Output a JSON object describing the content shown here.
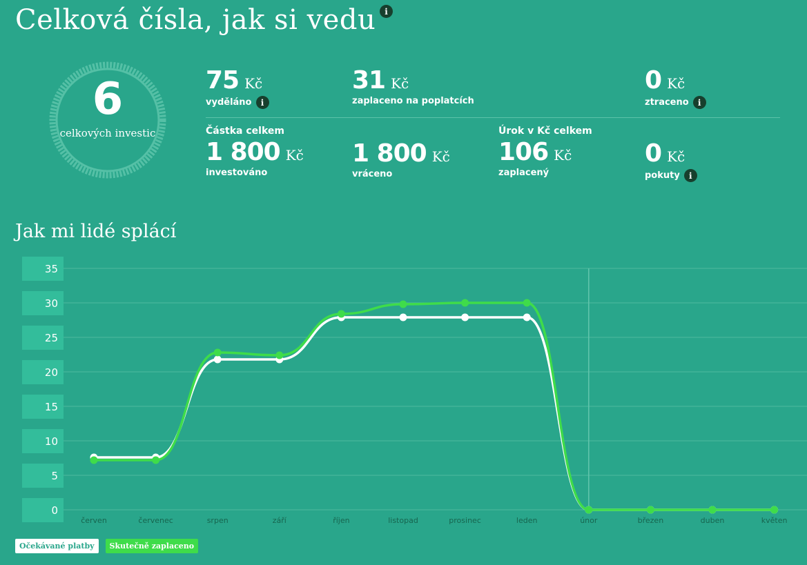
{
  "header": {
    "title": "Celková čísla, jak si vedu",
    "info_icon": "info-icon"
  },
  "summary": {
    "total_investments": {
      "value": "6",
      "label": "celkových investic"
    },
    "earned": {
      "value": "75",
      "unit": "Kč",
      "label": "vyděláno"
    },
    "fees": {
      "value": "31",
      "unit": "Kč",
      "label": "zaplaceno na poplatcích"
    },
    "lost": {
      "value": "0",
      "unit": "Kč",
      "label": "ztraceno"
    },
    "amount_heading": "Částka celkem",
    "invested": {
      "value": "1 800",
      "unit": "Kč",
      "label": "investováno"
    },
    "returned": {
      "value": "1 800",
      "unit": "Kč",
      "label": "vráceno"
    },
    "interest_heading": "Úrok v Kč celkem",
    "interest_paid": {
      "value": "106",
      "unit": "Kč",
      "label": "zaplacený"
    },
    "penalties": {
      "value": "0",
      "unit": "Kč",
      "label": "pokuty"
    }
  },
  "chart_title": "Jak mi lidé splácí",
  "chart_data": {
    "type": "line",
    "categories": [
      "červen",
      "červenec",
      "srpen",
      "září",
      "říjen",
      "listopad",
      "prosinec",
      "leden",
      "únor",
      "březen",
      "duben",
      "květen"
    ],
    "series": [
      {
        "name": "Očekávané platby",
        "color": "#ffffff",
        "values": [
          7.6,
          7.6,
          21.8,
          21.8,
          27.9,
          27.9,
          27.9,
          27.9,
          0,
          0,
          0,
          0
        ]
      },
      {
        "name": "Skutečně zaplaceno",
        "color": "#3fdc4a",
        "values": [
          7.2,
          7.2,
          22.8,
          22.4,
          28.4,
          29.8,
          30.0,
          30.0,
          0,
          0,
          0,
          0
        ]
      }
    ],
    "yticks": [
      0,
      5,
      10,
      15,
      20,
      25,
      30,
      35
    ],
    "ylim": [
      0,
      35
    ],
    "current_marker": "únor",
    "legend_placement": "bottom-left"
  }
}
